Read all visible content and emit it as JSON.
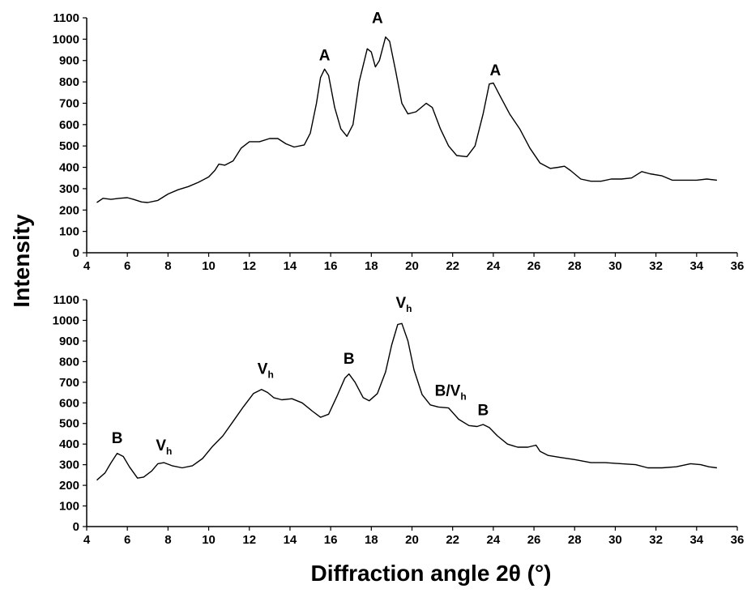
{
  "chart_data": {
    "type": "line",
    "ylabel": "Intensity",
    "xlabel": "Diffraction angle 2θ (°)",
    "x_ticks": [
      4,
      6,
      8,
      10,
      12,
      14,
      16,
      18,
      20,
      22,
      24,
      26,
      28,
      30,
      32,
      34,
      36
    ],
    "y_ticks": [
      0,
      100,
      200,
      300,
      400,
      500,
      600,
      700,
      800,
      900,
      1000,
      1100
    ],
    "xlim": [
      4,
      36
    ],
    "ylim": [
      0,
      1100
    ],
    "grid": false,
    "legend": "none",
    "panels": [
      {
        "name": "top",
        "series": [
          {
            "points": [
              [
                4.5,
                235
              ],
              [
                4.8,
                255
              ],
              [
                5.2,
                250
              ],
              [
                5.6,
                255
              ],
              [
                6.0,
                258
              ],
              [
                6.3,
                250
              ],
              [
                6.7,
                238
              ],
              [
                7.0,
                235
              ],
              [
                7.5,
                245
              ],
              [
                8.0,
                275
              ],
              [
                8.5,
                295
              ],
              [
                9.0,
                310
              ],
              [
                9.5,
                330
              ],
              [
                10.0,
                355
              ],
              [
                10.3,
                385
              ],
              [
                10.5,
                415
              ],
              [
                10.8,
                410
              ],
              [
                11.2,
                430
              ],
              [
                11.6,
                490
              ],
              [
                12.0,
                520
              ],
              [
                12.5,
                520
              ],
              [
                13.0,
                535
              ],
              [
                13.4,
                535
              ],
              [
                13.8,
                510
              ],
              [
                14.2,
                495
              ],
              [
                14.7,
                505
              ],
              [
                15.0,
                560
              ],
              [
                15.3,
                700
              ],
              [
                15.5,
                820
              ],
              [
                15.7,
                860
              ],
              [
                15.9,
                830
              ],
              [
                16.2,
                680
              ],
              [
                16.5,
                580
              ],
              [
                16.8,
                545
              ],
              [
                17.1,
                600
              ],
              [
                17.4,
                800
              ],
              [
                17.8,
                955
              ],
              [
                18.0,
                940
              ],
              [
                18.2,
                870
              ],
              [
                18.4,
                900
              ],
              [
                18.7,
                1010
              ],
              [
                18.9,
                990
              ],
              [
                19.2,
                850
              ],
              [
                19.5,
                700
              ],
              [
                19.8,
                650
              ],
              [
                20.2,
                660
              ],
              [
                20.7,
                700
              ],
              [
                21.0,
                680
              ],
              [
                21.4,
                580
              ],
              [
                21.8,
                500
              ],
              [
                22.2,
                455
              ],
              [
                22.7,
                450
              ],
              [
                23.1,
                500
              ],
              [
                23.5,
                650
              ],
              [
                23.8,
                790
              ],
              [
                24.0,
                795
              ],
              [
                24.3,
                740
              ],
              [
                24.8,
                650
              ],
              [
                25.3,
                580
              ],
              [
                25.8,
                490
              ],
              [
                26.3,
                420
              ],
              [
                26.8,
                395
              ],
              [
                27.2,
                400
              ],
              [
                27.5,
                405
              ],
              [
                27.8,
                385
              ],
              [
                28.3,
                345
              ],
              [
                28.8,
                335
              ],
              [
                29.3,
                335
              ],
              [
                29.8,
                345
              ],
              [
                30.3,
                345
              ],
              [
                30.8,
                350
              ],
              [
                31.3,
                380
              ],
              [
                31.7,
                370
              ],
              [
                32.3,
                360
              ],
              [
                32.8,
                340
              ],
              [
                33.5,
                340
              ],
              [
                34.0,
                340
              ],
              [
                34.5,
                345
              ],
              [
                35.0,
                340
              ]
            ]
          }
        ],
        "annotations": [
          {
            "text": "A",
            "sub": "",
            "x": 15.7,
            "y": 900
          },
          {
            "text": "A",
            "sub": "",
            "x": 18.3,
            "y": 1075
          },
          {
            "text": "A",
            "sub": "",
            "x": 24.1,
            "y": 830
          }
        ]
      },
      {
        "name": "bottom",
        "series": [
          {
            "points": [
              [
                4.5,
                225
              ],
              [
                4.9,
                260
              ],
              [
                5.2,
                310
              ],
              [
                5.5,
                355
              ],
              [
                5.8,
                340
              ],
              [
                6.1,
                290
              ],
              [
                6.5,
                235
              ],
              [
                6.8,
                240
              ],
              [
                7.2,
                270
              ],
              [
                7.5,
                305
              ],
              [
                7.8,
                310
              ],
              [
                8.2,
                295
              ],
              [
                8.7,
                285
              ],
              [
                9.2,
                295
              ],
              [
                9.7,
                330
              ],
              [
                10.2,
                390
              ],
              [
                10.7,
                440
              ],
              [
                11.2,
                510
              ],
              [
                11.7,
                580
              ],
              [
                12.2,
                645
              ],
              [
                12.6,
                665
              ],
              [
                12.9,
                650
              ],
              [
                13.2,
                625
              ],
              [
                13.6,
                615
              ],
              [
                14.1,
                620
              ],
              [
                14.6,
                600
              ],
              [
                15.1,
                560
              ],
              [
                15.5,
                530
              ],
              [
                15.9,
                545
              ],
              [
                16.3,
                630
              ],
              [
                16.7,
                720
              ],
              [
                16.9,
                740
              ],
              [
                17.2,
                700
              ],
              [
                17.6,
                625
              ],
              [
                17.9,
                610
              ],
              [
                18.3,
                645
              ],
              [
                18.7,
                750
              ],
              [
                19.0,
                880
              ],
              [
                19.3,
                980
              ],
              [
                19.5,
                985
              ],
              [
                19.8,
                900
              ],
              [
                20.1,
                760
              ],
              [
                20.5,
                640
              ],
              [
                20.9,
                590
              ],
              [
                21.3,
                580
              ],
              [
                21.8,
                575
              ],
              [
                22.3,
                520
              ],
              [
                22.8,
                490
              ],
              [
                23.2,
                485
              ],
              [
                23.5,
                495
              ],
              [
                23.8,
                480
              ],
              [
                24.2,
                440
              ],
              [
                24.7,
                400
              ],
              [
                25.2,
                385
              ],
              [
                25.7,
                385
              ],
              [
                26.1,
                395
              ],
              [
                26.3,
                365
              ],
              [
                26.7,
                345
              ],
              [
                27.3,
                335
              ],
              [
                28.0,
                325
              ],
              [
                28.8,
                310
              ],
              [
                29.5,
                310
              ],
              [
                30.3,
                305
              ],
              [
                31.0,
                300
              ],
              [
                31.6,
                285
              ],
              [
                32.3,
                285
              ],
              [
                33.0,
                290
              ],
              [
                33.7,
                305
              ],
              [
                34.2,
                300
              ],
              [
                34.6,
                290
              ],
              [
                35.0,
                285
              ]
            ]
          }
        ],
        "annotations": [
          {
            "text": "B",
            "sub": "",
            "x": 5.5,
            "y": 405
          },
          {
            "text": "V",
            "sub": "h",
            "x": 7.8,
            "y": 370
          },
          {
            "text": "V",
            "sub": "h",
            "x": 12.8,
            "y": 740
          },
          {
            "text": "B",
            "sub": "",
            "x": 16.9,
            "y": 790
          },
          {
            "text": "V",
            "sub": "h",
            "x": 19.6,
            "y": 1060
          },
          {
            "text": "B/V",
            "sub": "h",
            "x": 21.9,
            "y": 635
          },
          {
            "text": "B",
            "sub": "",
            "x": 23.5,
            "y": 540
          }
        ]
      }
    ]
  }
}
